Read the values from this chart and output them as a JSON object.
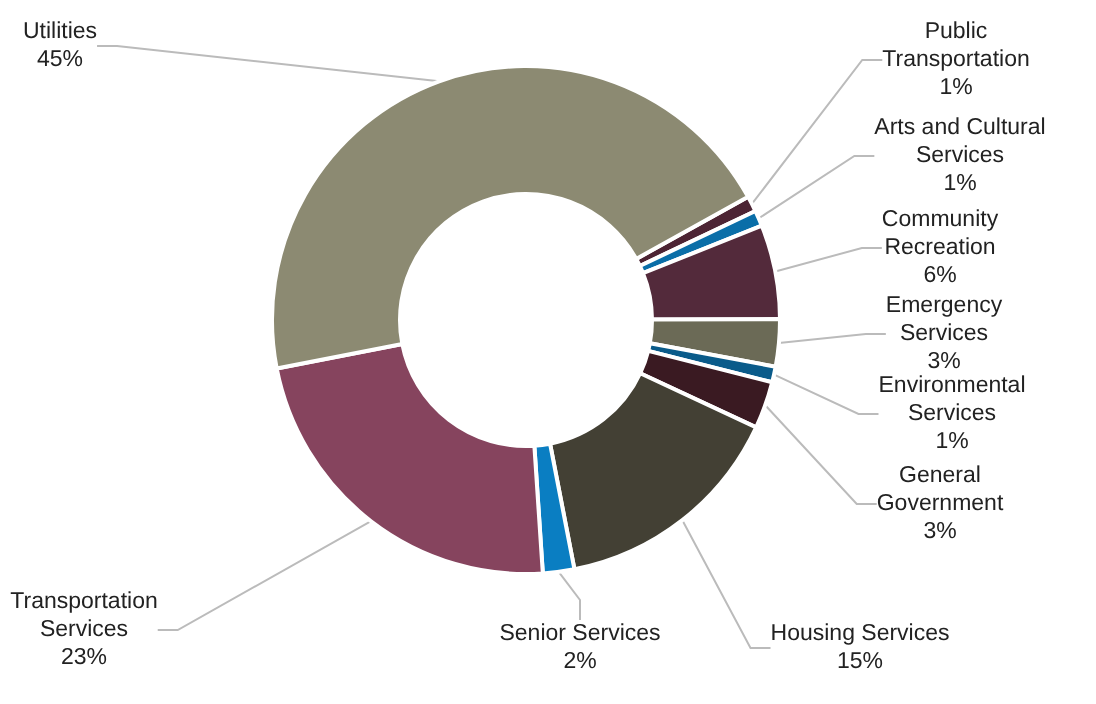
{
  "chart_data": {
    "type": "donut",
    "categories": [
      "Public Transportation",
      "Arts and Cultural Services",
      "Community Recreation",
      "Emergency Services",
      "Environmental Services",
      "General Government",
      "Housing Services",
      "Senior Services",
      "Transportation Services",
      "Utilities"
    ],
    "values": [
      1,
      1,
      6,
      3,
      1,
      3,
      15,
      2,
      23,
      45
    ],
    "value_labels": [
      "1%",
      "1%",
      "6%",
      "3%",
      "1%",
      "3%",
      "15%",
      "2%",
      "23%",
      "45%"
    ],
    "colors": [
      "#4d2434",
      "#0a6ea8",
      "#532a3b",
      "#6b6a56",
      "#0a5b8a",
      "#3a1a22",
      "#434034",
      "#0a7ec2",
      "#86445e",
      "#8c8a72"
    ],
    "legend": false
  }
}
